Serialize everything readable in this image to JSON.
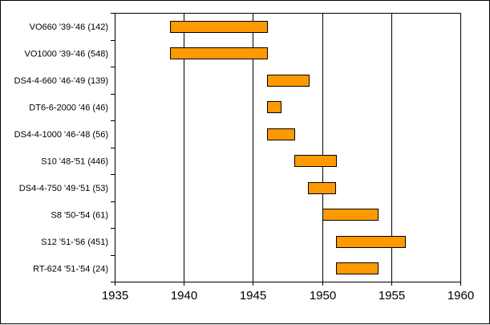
{
  "chart_data": {
    "type": "bar",
    "orientation": "horizontal-floating",
    "title": "",
    "xlabel": "",
    "ylabel": "",
    "xlim": [
      1935,
      1960
    ],
    "x_ticks": [
      "1935",
      "1940",
      "1945",
      "1950",
      "1955",
      "1960"
    ],
    "grid": "vertical major gridlines",
    "legend": "none",
    "bar_color": "#ff9900",
    "bar_edge_color": "#000000",
    "categories": [
      "VO660 '39-'46 (142)",
      "VO1000 '39-'46 (548)",
      "DS4-4-660 '46-'49 (139)",
      "DT6-6-2000 '46 (46)",
      "DS4-4-1000 '46-'48 (56)",
      "S10 '48-'51 (446)",
      "DS4-4-750 '49-'51 (53)",
      "S8 '50-'54 (61)",
      "S12 '51-'56 (451)",
      "RT-624 '51-'54 (24)"
    ],
    "bars": [
      {
        "start": 1939,
        "end": 1946
      },
      {
        "start": 1939,
        "end": 1946
      },
      {
        "start": 1946,
        "end": 1949
      },
      {
        "start": 1946,
        "end": 1947
      },
      {
        "start": 1946,
        "end": 1948
      },
      {
        "start": 1948,
        "end": 1951
      },
      {
        "start": 1949,
        "end": 1951
      },
      {
        "start": 1950,
        "end": 1954
      },
      {
        "start": 1951,
        "end": 1956
      },
      {
        "start": 1951,
        "end": 1954
      }
    ]
  }
}
